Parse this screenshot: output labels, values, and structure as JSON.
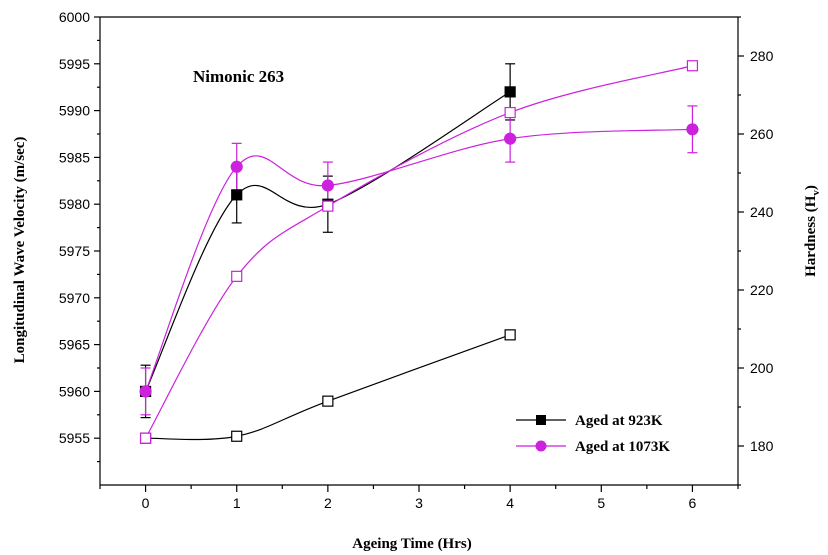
{
  "chart_data": {
    "type": "scatter",
    "annotation": "Nimonic 263",
    "xlabel": "Ageing Time (Hrs)",
    "ylabel_left": "Longitudinal Wave Velocity (m/sec)",
    "ylabel_right_main": "Hardness (H",
    "ylabel_right_sub": "v",
    "ylabel_right_close": ")",
    "xlim": [
      -0.5,
      6.5
    ],
    "ylim_left": [
      5950,
      6000
    ],
    "ylim_right": [
      170,
      290
    ],
    "x_ticks": [
      0,
      1,
      2,
      3,
      4,
      5,
      6
    ],
    "x_tick_labels": [
      "0",
      "1",
      "2",
      "3",
      "4",
      "5",
      "6"
    ],
    "y_left_ticks": [
      5955,
      5960,
      5965,
      5970,
      5975,
      5980,
      5985,
      5990,
      5995,
      6000
    ],
    "y_left_tick_labels": [
      "5955",
      "5960",
      "5965",
      "5970",
      "5975",
      "5980",
      "5985",
      "5990",
      "5995",
      "6000"
    ],
    "y_right_ticks": [
      180,
      200,
      220,
      240,
      260,
      280
    ],
    "y_right_tick_labels": [
      "180",
      "200",
      "220",
      "240",
      "260",
      "280"
    ],
    "legend_position": "bottom-right",
    "series": [
      {
        "name": "Aged at 923K",
        "axis": "left",
        "marker": "square",
        "filled": true,
        "color": "#000000",
        "line_color": "#000000",
        "x": [
          0,
          1,
          2,
          4
        ],
        "y": [
          5960,
          5981,
          5980,
          5992
        ],
        "error": [
          2.8,
          3.0,
          3.0,
          3.0
        ]
      },
      {
        "name": "Aged at 1073K",
        "axis": "left",
        "marker": "circle",
        "filled": true,
        "color": "#cc22dd",
        "line_color": "#cc22dd",
        "x": [
          0,
          1,
          2,
          4,
          6
        ],
        "y": [
          5960,
          5984,
          5982,
          5987,
          5988
        ],
        "error": [
          2.5,
          2.5,
          2.5,
          2.5,
          2.5
        ]
      },
      {
        "name": "",
        "axis": "right",
        "marker": "square",
        "filled": false,
        "color": "#000000",
        "line_color": "#000000",
        "x": [
          0,
          1,
          2,
          4
        ],
        "y": [
          182,
          182.5,
          191.5,
          208.5
        ],
        "error": []
      },
      {
        "name": "",
        "axis": "right",
        "marker": "square",
        "filled": false,
        "color": "#cc22dd",
        "line_color": "#cc22dd",
        "x": [
          0,
          1,
          2,
          4,
          6
        ],
        "y": [
          182,
          223.5,
          241.5,
          265.5,
          277.5
        ],
        "error": []
      }
    ],
    "legend": [
      {
        "label": "Aged at 923K",
        "color": "#000000",
        "marker": "square"
      },
      {
        "label": "Aged at 1073K",
        "color": "#cc22dd",
        "marker": "circle"
      }
    ]
  }
}
